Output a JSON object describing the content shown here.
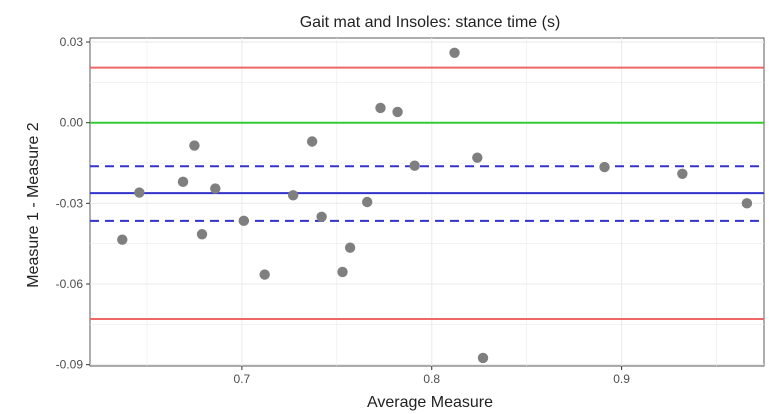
{
  "chart_data": {
    "type": "scatter",
    "title": "Gait mat and Insoles: stance time (s)",
    "xlabel": "Average Measure",
    "ylabel": "Measure 1 - Measure 2",
    "xlim": [
      0.62,
      0.975
    ],
    "ylim": [
      -0.0905,
      0.0315
    ],
    "x_ticks": [
      {
        "value": 0.7,
        "label": "0.7"
      },
      {
        "value": 0.8,
        "label": "0.8"
      },
      {
        "value": 0.9,
        "label": "0.9"
      }
    ],
    "y_ticks": [
      {
        "value": 0.03,
        "label": "0.03"
      },
      {
        "value": 0.0,
        "label": "0.00"
      },
      {
        "value": -0.03,
        "label": "-0.03"
      },
      {
        "value": -0.06,
        "label": "-0.06"
      },
      {
        "value": -0.09,
        "label": "-0.09"
      }
    ],
    "grid": true,
    "points": [
      {
        "x": 0.637,
        "y": -0.0435
      },
      {
        "x": 0.646,
        "y": -0.026
      },
      {
        "x": 0.669,
        "y": -0.022
      },
      {
        "x": 0.675,
        "y": -0.0085
      },
      {
        "x": 0.679,
        "y": -0.0415
      },
      {
        "x": 0.686,
        "y": -0.0245
      },
      {
        "x": 0.701,
        "y": -0.0365
      },
      {
        "x": 0.712,
        "y": -0.0565
      },
      {
        "x": 0.727,
        "y": -0.027
      },
      {
        "x": 0.737,
        "y": -0.007
      },
      {
        "x": 0.742,
        "y": -0.035
      },
      {
        "x": 0.753,
        "y": -0.0555
      },
      {
        "x": 0.757,
        "y": -0.0465
      },
      {
        "x": 0.766,
        "y": -0.0295
      },
      {
        "x": 0.773,
        "y": 0.0055
      },
      {
        "x": 0.782,
        "y": 0.004
      },
      {
        "x": 0.791,
        "y": -0.016
      },
      {
        "x": 0.812,
        "y": 0.026
      },
      {
        "x": 0.824,
        "y": -0.013
      },
      {
        "x": 0.827,
        "y": -0.0875
      },
      {
        "x": 0.891,
        "y": -0.0165
      },
      {
        "x": 0.932,
        "y": -0.019
      },
      {
        "x": 0.966,
        "y": -0.03
      }
    ],
    "reference_lines": [
      {
        "name": "upper-limit",
        "y": 0.0205,
        "color": "#ee6666",
        "style": "solid"
      },
      {
        "name": "zero",
        "y": 0.0,
        "color": "#33cc33",
        "style": "solid"
      },
      {
        "name": "mean-ci-upper",
        "y": -0.0162,
        "color": "#3333cc",
        "style": "dashed"
      },
      {
        "name": "mean",
        "y": -0.0262,
        "color": "#3333cc",
        "style": "solid"
      },
      {
        "name": "mean-ci-lower",
        "y": -0.0365,
        "color": "#3333cc",
        "style": "dashed"
      },
      {
        "name": "lower-limit",
        "y": -0.073,
        "color": "#ee6666",
        "style": "solid"
      }
    ],
    "point_color": "#7f7f7f",
    "panel_background": "#ffffff",
    "grid_color": "#ebebeb"
  }
}
